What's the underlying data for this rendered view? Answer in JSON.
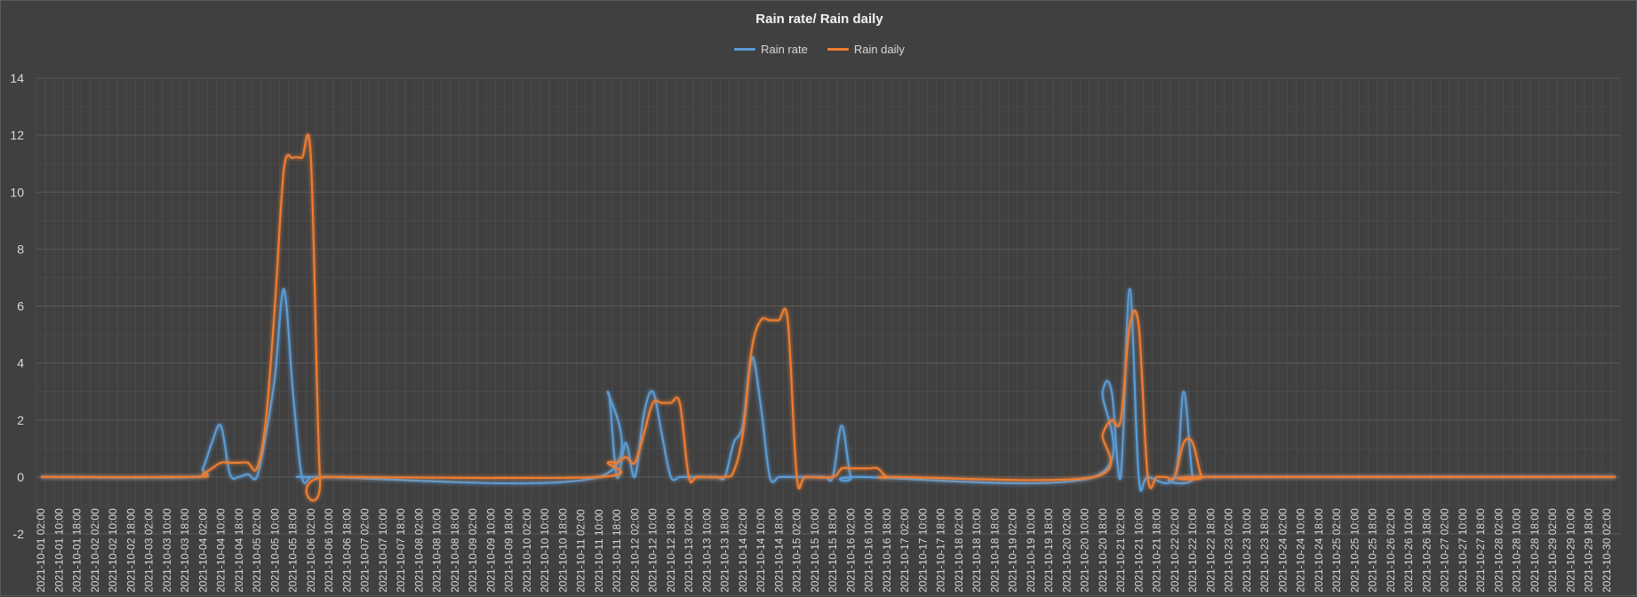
{
  "chart_data": {
    "type": "line",
    "title": "Rain rate/ Rain daily",
    "xlabel": "",
    "ylabel": "",
    "ylim": [
      -2,
      14
    ],
    "y_ticks": [
      -2,
      0,
      2,
      4,
      6,
      8,
      10,
      12,
      14
    ],
    "grid": true,
    "legend_position": "top-center",
    "x_start": "2021-10-01 02:00",
    "x_step_hours": 4,
    "x_count": 176,
    "x_label_every": 2,
    "series": [
      {
        "name": "Rain rate",
        "color": "#5b9bd5",
        "points": [
          [
            0,
            0
          ],
          [
            17,
            0
          ],
          [
            18,
            0.3
          ],
          [
            19,
            1.2
          ],
          [
            20,
            1.8
          ],
          [
            21,
            0.1
          ],
          [
            22,
            0
          ],
          [
            23,
            0.1
          ],
          [
            24,
            0
          ],
          [
            25,
            1.5
          ],
          [
            26,
            3.5
          ],
          [
            27,
            6.6
          ],
          [
            28,
            3.0
          ],
          [
            29,
            0
          ],
          [
            30,
            0
          ],
          [
            31,
            0
          ],
          [
            62,
            0
          ],
          [
            63,
            3.0
          ],
          [
            64,
            0
          ],
          [
            65,
            1.2
          ],
          [
            66,
            0
          ],
          [
            67,
            2.2
          ],
          [
            68,
            3.0
          ],
          [
            69,
            1.5
          ],
          [
            70,
            0
          ],
          [
            71,
            0
          ],
          [
            72,
            0
          ],
          [
            75,
            0
          ],
          [
            76,
            0
          ],
          [
            77,
            1.2
          ],
          [
            78,
            1.8
          ],
          [
            79,
            4.2
          ],
          [
            80,
            2.5
          ],
          [
            81,
            0
          ],
          [
            82,
            0
          ],
          [
            83,
            0
          ],
          [
            84,
            0
          ],
          [
            87,
            0
          ],
          [
            88,
            0
          ],
          [
            89,
            1.8
          ],
          [
            90,
            0
          ],
          [
            91,
            0
          ],
          [
            117,
            0
          ],
          [
            118,
            3.0
          ],
          [
            119,
            3.0
          ],
          [
            120,
            0
          ],
          [
            121,
            6.6
          ],
          [
            122,
            0
          ],
          [
            123,
            0
          ],
          [
            126,
            0
          ],
          [
            127,
            3.0
          ],
          [
            128,
            0
          ],
          [
            129,
            0
          ],
          [
            175,
            0
          ]
        ]
      },
      {
        "name": "Rain daily",
        "color": "#ed7d31",
        "points": [
          [
            0,
            0
          ],
          [
            17,
            0
          ],
          [
            18,
            0.1
          ],
          [
            19,
            0.3
          ],
          [
            20,
            0.5
          ],
          [
            21,
            0.5
          ],
          [
            22,
            0.5
          ],
          [
            23,
            0.5
          ],
          [
            24,
            0.3
          ],
          [
            25,
            2.0
          ],
          [
            26,
            6.0
          ],
          [
            27,
            10.8
          ],
          [
            28,
            11.2
          ],
          [
            29,
            11.2
          ],
          [
            30,
            11.2
          ],
          [
            31,
            0
          ],
          [
            32,
            0
          ],
          [
            62,
            0
          ],
          [
            63,
            0.5
          ],
          [
            64,
            0.5
          ],
          [
            65,
            0.7
          ],
          [
            66,
            0.5
          ],
          [
            67,
            1.5
          ],
          [
            68,
            2.6
          ],
          [
            69,
            2.6
          ],
          [
            70,
            2.6
          ],
          [
            71,
            2.6
          ],
          [
            72,
            0
          ],
          [
            73,
            0
          ],
          [
            76,
            0
          ],
          [
            77,
            0.2
          ],
          [
            78,
            1.5
          ],
          [
            79,
            4.5
          ],
          [
            80,
            5.5
          ],
          [
            81,
            5.5
          ],
          [
            82,
            5.5
          ],
          [
            83,
            5.5
          ],
          [
            84,
            0
          ],
          [
            85,
            0
          ],
          [
            88,
            0
          ],
          [
            89,
            0.3
          ],
          [
            90,
            0.3
          ],
          [
            91,
            0.3
          ],
          [
            92,
            0.3
          ],
          [
            93,
            0.3
          ],
          [
            94,
            0
          ],
          [
            95,
            0
          ],
          [
            117,
            0
          ],
          [
            118,
            1.5
          ],
          [
            119,
            2.0
          ],
          [
            120,
            2.0
          ],
          [
            121,
            5.3
          ],
          [
            122,
            5.3
          ],
          [
            123,
            0
          ],
          [
            124,
            0
          ],
          [
            125,
            0
          ],
          [
            126,
            0
          ],
          [
            127,
            1.2
          ],
          [
            128,
            1.2
          ],
          [
            129,
            0
          ],
          [
            130,
            0
          ],
          [
            175,
            0
          ]
        ]
      }
    ]
  },
  "colors": {
    "background": "#404040",
    "grid_major": "#595959",
    "grid_minor": "#4d4d4d",
    "text": "#d9d9d9"
  }
}
